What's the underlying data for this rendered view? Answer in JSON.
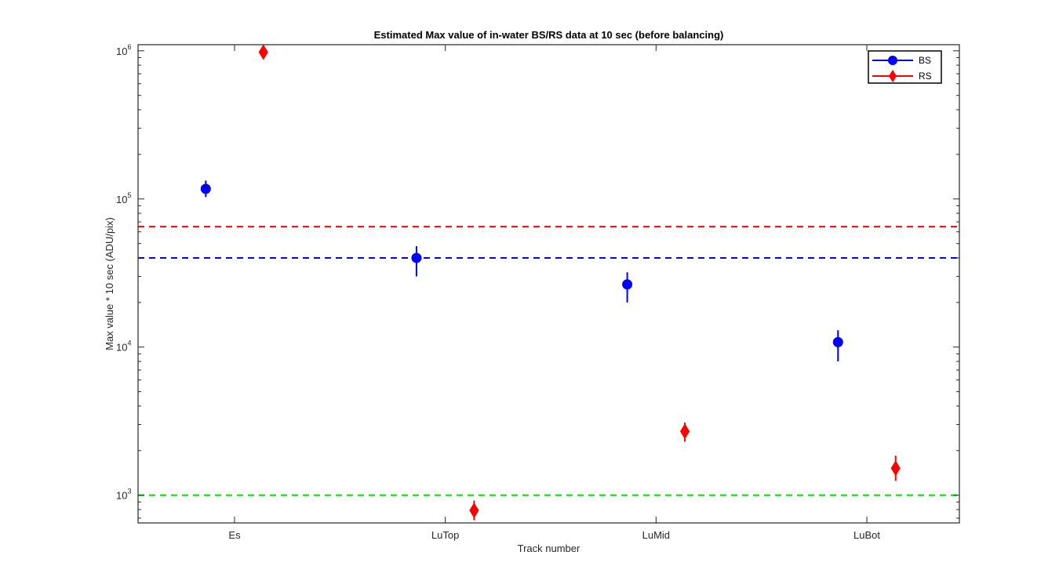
{
  "chart_data": {
    "type": "scatter",
    "title": "Estimated Max value of in-water BS/RS data at 10 sec (before balancing)",
    "xlabel": "Track number",
    "ylabel": "Max value * 10 sec (ADU/pix)",
    "categories": [
      "Es",
      "LuTop",
      "LuMid",
      "LuBot"
    ],
    "yscale": "log",
    "ylim": [
      650,
      1100000
    ],
    "yticks": [
      {
        "value": 1000,
        "base": "10",
        "exp": "3"
      },
      {
        "value": 10000,
        "base": "10",
        "exp": "4"
      },
      {
        "value": 100000,
        "base": "10",
        "exp": "5"
      },
      {
        "value": 1000000,
        "base": "10",
        "exp": "6"
      }
    ],
    "grid": false,
    "legend_position": "top-right",
    "series": [
      {
        "name": "BS",
        "color": "#0000ff",
        "marker": "circle",
        "x_offset": -0.12,
        "values": [
          117000,
          40000,
          26500,
          10800
        ],
        "err_low": [
          103000,
          30000,
          20000,
          8000
        ],
        "err_high": [
          133000,
          48000,
          32000,
          13000
        ]
      },
      {
        "name": "RS",
        "color": "#ff0000",
        "marker": "diamond",
        "x_offset": 0.12,
        "values": [
          980000,
          790,
          2700,
          1520
        ],
        "err_low": [
          900000,
          680,
          2300,
          1250
        ],
        "err_high": [
          1070000,
          920,
          3100,
          1850
        ]
      }
    ],
    "reference_lines": [
      {
        "value": 65000,
        "color": "#ff0000",
        "style": "dashed"
      },
      {
        "value": 40000,
        "color": "#0000ff",
        "style": "dashed"
      },
      {
        "value": 1000,
        "color": "#00dd00",
        "style": "dashed"
      }
    ]
  }
}
